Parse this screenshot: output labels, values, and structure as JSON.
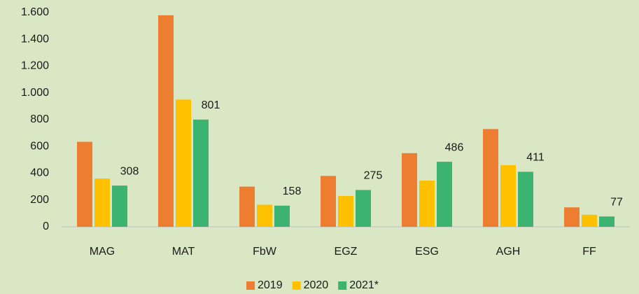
{
  "chart_data": {
    "type": "bar",
    "categories": [
      "MAG",
      "MAT",
      "FbW",
      "EGZ",
      "ESG",
      "AGH",
      "FF"
    ],
    "series": [
      {
        "name": "2019",
        "color": "#ed7d31",
        "values": [
          635,
          1580,
          300,
          380,
          550,
          730,
          145
        ]
      },
      {
        "name": "2020",
        "color": "#ffc000",
        "values": [
          360,
          950,
          165,
          230,
          345,
          460,
          90
        ]
      },
      {
        "name": "2021*",
        "color": "#3cb371",
        "values": [
          308,
          801,
          158,
          275,
          486,
          411,
          77
        ],
        "data_labels": true
      }
    ],
    "ylim": [
      0,
      1600
    ],
    "yticks": [
      0,
      200,
      400,
      600,
      800,
      {
        "value": 1000,
        "label": "1.000"
      },
      {
        "value": 1200,
        "label": "1.200"
      },
      {
        "value": 1400,
        "label": "1.400"
      },
      {
        "value": 1600,
        "label": "1.600"
      }
    ],
    "grid": false,
    "legend": "bottom"
  }
}
